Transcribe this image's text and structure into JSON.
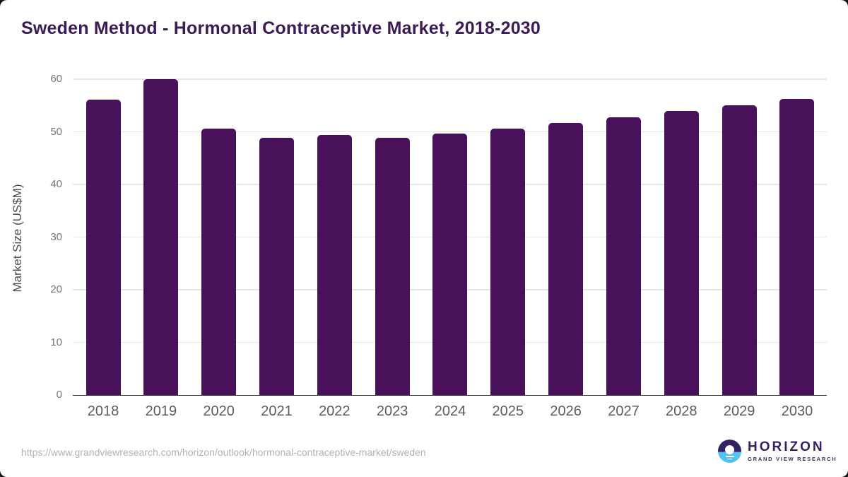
{
  "chart_data": {
    "type": "bar",
    "title": "Sweden Method - Hormonal Contraceptive Market, 2018-2030",
    "categories": [
      "2018",
      "2019",
      "2020",
      "2021",
      "2022",
      "2023",
      "2024",
      "2025",
      "2026",
      "2027",
      "2028",
      "2029",
      "2030"
    ],
    "values": [
      56.1,
      60.0,
      50.6,
      48.9,
      49.4,
      48.8,
      49.7,
      50.6,
      51.7,
      52.7,
      53.9,
      55.1,
      56.3
    ],
    "xlabel": "",
    "ylabel": "Market Size (US$M)",
    "ylim": [
      0,
      60
    ],
    "yticks": [
      0,
      10,
      20,
      30,
      40,
      50,
      60
    ],
    "bar_color": "#49115a",
    "grid": true,
    "legend": false
  },
  "footer": {
    "url": "https://www.grandviewresearch.com/horizon/outlook/hormonal-contraceptive-market/sweden",
    "logo": {
      "brand": "HORIZON",
      "sub_brand": "GRAND VIEW RESEARCH",
      "icon": "sunrise-horizon-icon",
      "brand_color": "#332163",
      "icon_blue": "#55c3f0"
    }
  },
  "colors": {
    "title": "#3b1a55",
    "bar": "#49115a",
    "gridline": "#e6e6e6",
    "axis_line": "#333333",
    "tick_text": "#757575",
    "card_background": "#ffffff"
  }
}
